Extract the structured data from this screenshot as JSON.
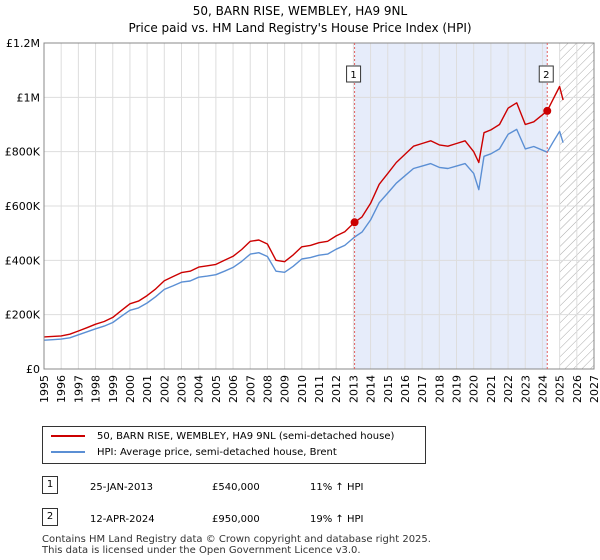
{
  "title_line1": "50, BARN RISE, WEMBLEY, HA9 9NL",
  "title_line2": "Price paid vs. HM Land Registry's House Price Index (HPI)",
  "chart_data": {
    "type": "line",
    "xlabel": "",
    "ylabel": "",
    "xlim": [
      1995,
      2027
    ],
    "ylim": [
      0,
      1200000
    ],
    "x_ticks": [
      1995,
      1996,
      1997,
      1998,
      1999,
      2000,
      2001,
      2002,
      2003,
      2004,
      2005,
      2006,
      2007,
      2008,
      2009,
      2010,
      2011,
      2012,
      2013,
      2014,
      2015,
      2016,
      2017,
      2018,
      2019,
      2020,
      2021,
      2022,
      2023,
      2024,
      2025,
      2026,
      2027
    ],
    "y_ticks": [
      {
        "value": 0,
        "label": "£0"
      },
      {
        "value": 200000,
        "label": "£200K"
      },
      {
        "value": 400000,
        "label": "£400K"
      },
      {
        "value": 600000,
        "label": "£600K"
      },
      {
        "value": 800000,
        "label": "£800K"
      },
      {
        "value": 1000000,
        "label": "£1M"
      },
      {
        "value": 1200000,
        "label": "£1.2M"
      }
    ],
    "grid": true,
    "hatched_future_from": 2025.0,
    "shaded_span": [
      2013.07,
      2024.28
    ],
    "series": [
      {
        "name": "50, BARN RISE, WEMBLEY, HA9 9NL (semi-detached house)",
        "color": "#cc0000",
        "x": [
          1995,
          1995.5,
          1996,
          1996.5,
          1997,
          1997.5,
          1998,
          1998.5,
          1999,
          1999.5,
          2000,
          2000.5,
          2001,
          2001.5,
          2002,
          2002.5,
          2003,
          2003.5,
          2004,
          2004.5,
          2005,
          2005.5,
          2006,
          2006.5,
          2007,
          2007.5,
          2008,
          2008.5,
          2009,
          2009.5,
          2010,
          2010.5,
          2011,
          2011.5,
          2012,
          2012.5,
          2013.07,
          2013.5,
          2014,
          2014.5,
          2015,
          2015.5,
          2016,
          2016.5,
          2017,
          2017.5,
          2018,
          2018.5,
          2019,
          2019.5,
          2020,
          2020.3,
          2020.6,
          2021,
          2021.5,
          2022,
          2022.5,
          2023,
          2023.5,
          2024.28,
          2024.6,
          2025,
          2025.2
        ],
        "values": [
          118000,
          120000,
          122000,
          128000,
          140000,
          152000,
          165000,
          175000,
          190000,
          215000,
          240000,
          250000,
          270000,
          295000,
          325000,
          340000,
          355000,
          360000,
          375000,
          380000,
          385000,
          400000,
          415000,
          440000,
          470000,
          475000,
          460000,
          400000,
          395000,
          420000,
          450000,
          455000,
          465000,
          470000,
          490000,
          505000,
          540000,
          560000,
          610000,
          680000,
          720000,
          760000,
          790000,
          820000,
          830000,
          840000,
          825000,
          820000,
          830000,
          840000,
          800000,
          760000,
          870000,
          880000,
          900000,
          960000,
          980000,
          900000,
          910000,
          950000,
          990000,
          1040000,
          990000
        ]
      },
      {
        "name": "HPI: Average price, semi-detached house, Brent",
        "color": "#5b8fd4",
        "x": [
          1995,
          1995.5,
          1996,
          1996.5,
          1997,
          1997.5,
          1998,
          1998.5,
          1999,
          1999.5,
          2000,
          2000.5,
          2001,
          2001.5,
          2002,
          2002.5,
          2003,
          2003.5,
          2004,
          2004.5,
          2005,
          2005.5,
          2006,
          2006.5,
          2007,
          2007.5,
          2008,
          2008.5,
          2009,
          2009.5,
          2010,
          2010.5,
          2011,
          2011.5,
          2012,
          2012.5,
          2013.07,
          2013.5,
          2014,
          2014.5,
          2015,
          2015.5,
          2016,
          2016.5,
          2017,
          2017.5,
          2018,
          2018.5,
          2019,
          2019.5,
          2020,
          2020.3,
          2020.6,
          2021,
          2021.5,
          2022,
          2022.5,
          2023,
          2023.5,
          2024.28,
          2024.6,
          2025,
          2025.2
        ],
        "values": [
          106000,
          108000,
          110000,
          115000,
          126000,
          137000,
          148000,
          158000,
          171000,
          194000,
          216000,
          225000,
          243000,
          266000,
          293000,
          306000,
          320000,
          324000,
          338000,
          342000,
          347000,
          360000,
          374000,
          396000,
          423000,
          428000,
          414000,
          360000,
          356000,
          378000,
          405000,
          410000,
          419000,
          423000,
          441000,
          455000,
          486000,
          504000,
          549000,
          612000,
          648000,
          684000,
          711000,
          738000,
          747000,
          756000,
          742000,
          738000,
          747000,
          756000,
          720000,
          660000,
          783000,
          792000,
          810000,
          864000,
          882000,
          810000,
          819000,
          798000,
          833000,
          875000,
          833000
        ]
      }
    ],
    "annotations": [
      {
        "label": "1",
        "x": 2013.07,
        "y": 540000
      },
      {
        "label": "2",
        "x": 2024.28,
        "y": 950000
      }
    ],
    "legend_position": "below"
  },
  "legend": {
    "series1": "50, BARN RISE, WEMBLEY, HA9 9NL (semi-detached house)",
    "series2": "HPI: Average price, semi-detached house, Brent"
  },
  "transactions": [
    {
      "num": "1",
      "date": "25-JAN-2013",
      "price": "£540,000",
      "hpi": "11% ↑ HPI"
    },
    {
      "num": "2",
      "date": "12-APR-2024",
      "price": "£950,000",
      "hpi": "19% ↑ HPI"
    }
  ],
  "footer": {
    "line1": "Contains HM Land Registry data © Crown copyright and database right 2025.",
    "line2": "This data is licensed under the Open Government Licence v3.0."
  },
  "colors": {
    "property": "#cc0000",
    "hpi": "#5b8fd4",
    "shade": "#e6ecfa",
    "vline": "#e06060"
  }
}
